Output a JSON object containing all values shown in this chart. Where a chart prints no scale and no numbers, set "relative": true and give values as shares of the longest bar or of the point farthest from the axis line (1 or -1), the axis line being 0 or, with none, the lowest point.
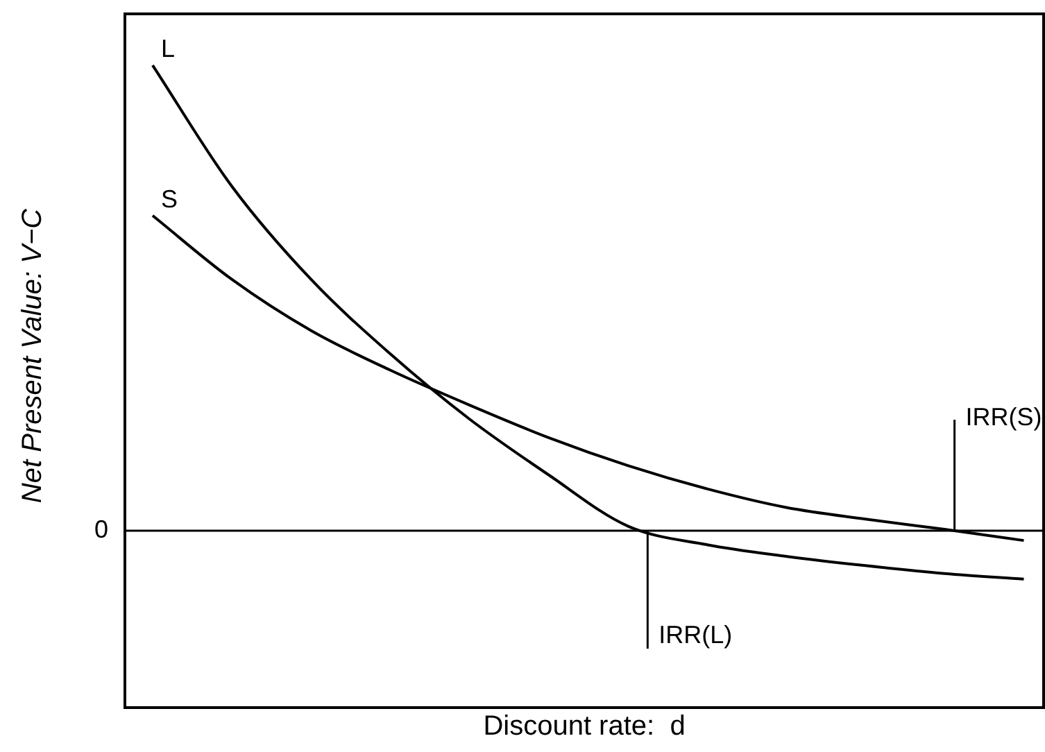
{
  "chart_data": {
    "type": "line",
    "relative": true,
    "xlabel": "Discount rate:  d",
    "ylabel": "Net Present Value:  V−C",
    "categories": [
      null,
      null,
      null,
      null,
      null,
      null,
      null,
      null,
      null,
      null,
      null,
      null
    ],
    "series": [
      {
        "name": "L",
        "color": "#000000",
        "values": [
          1,
          0.74,
          0.54,
          0.38,
          0.24,
          0.12,
          0.01,
          -0.03,
          -0.055,
          -0.075,
          -0.092,
          -0.104
        ]
      },
      {
        "name": "S",
        "color": "#000000",
        "values": [
          0.677,
          0.54,
          0.43,
          0.345,
          0.27,
          0.2,
          0.14,
          0.09,
          0.05,
          0.025,
          0.003,
          -0.021
        ]
      }
    ],
    "ref_lines": [
      {
        "axis": "y",
        "value": 0,
        "label": "0",
        "color": "#000000"
      }
    ],
    "annotations": [
      "IRR(L)",
      "IRR(S)"
    ],
    "legend": false,
    "grid": false,
    "marker": "none",
    "line_style": "solid"
  }
}
